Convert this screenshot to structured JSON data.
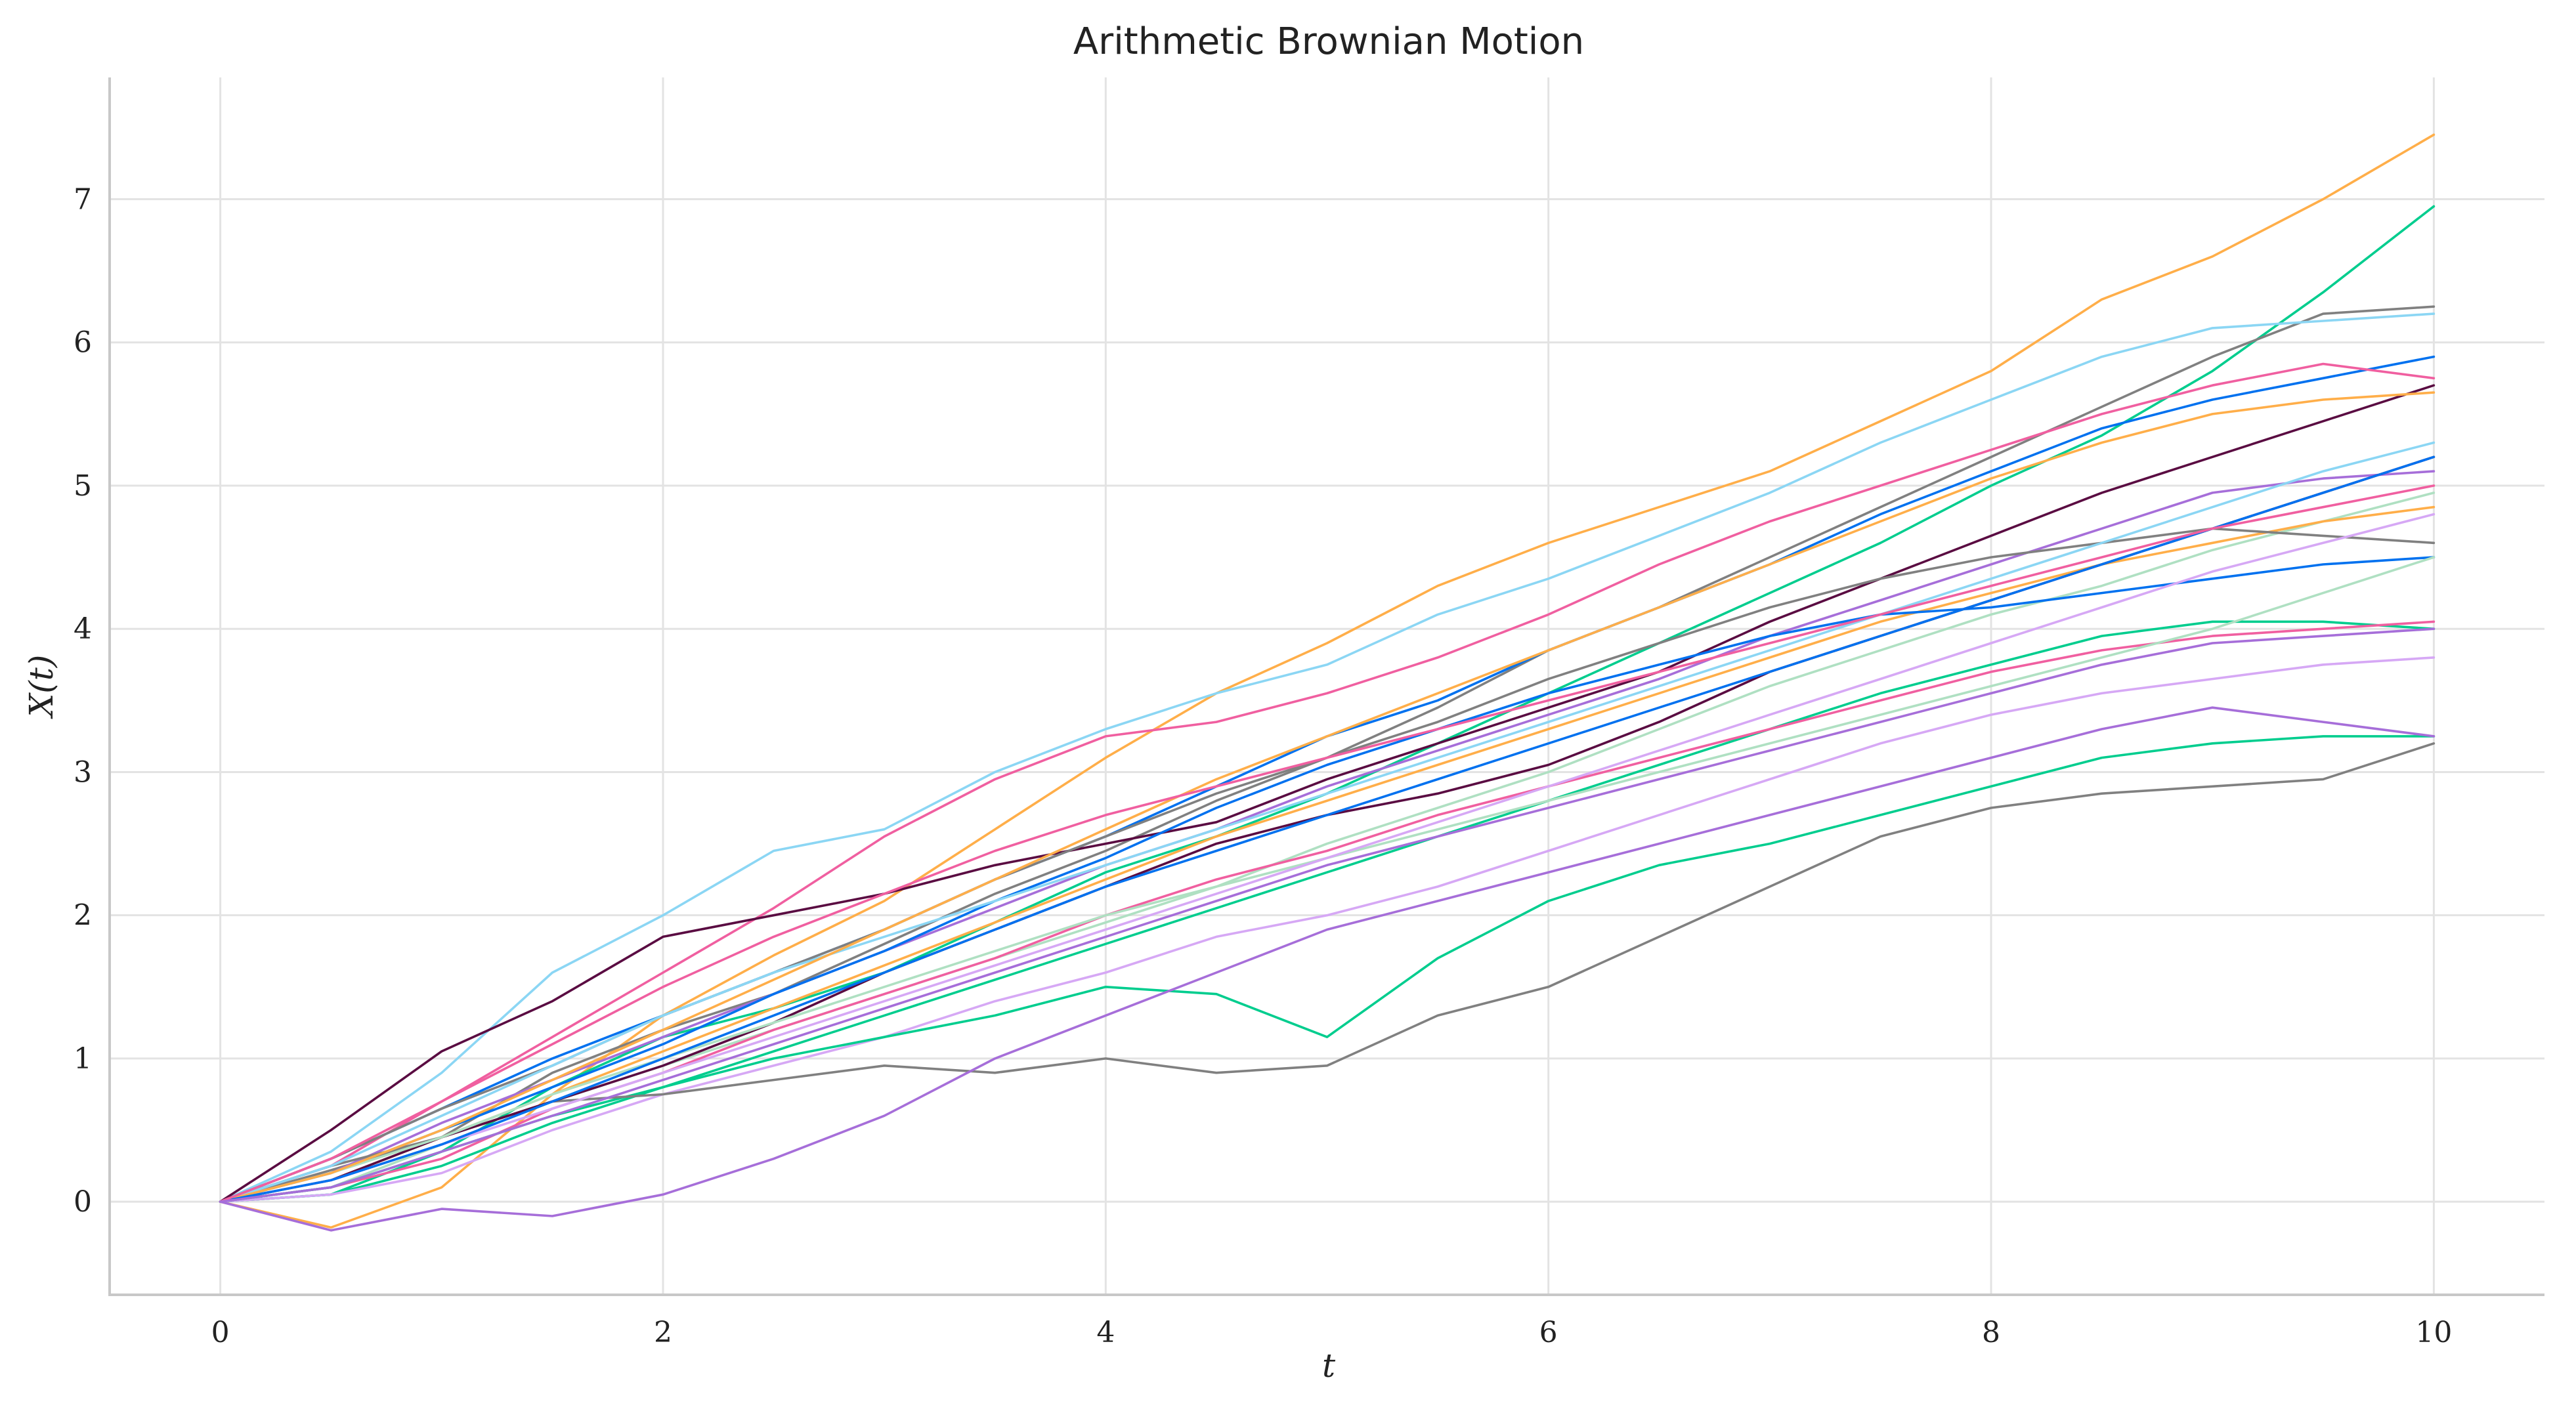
{
  "chart_data": {
    "type": "line",
    "title": "Arithmetic Brownian Motion",
    "xlabel": "t",
    "ylabel": "X(t)",
    "xlim": [
      -0.5,
      10.5
    ],
    "ylim": [
      -0.65,
      7.85
    ],
    "x_ticks": [
      0,
      2,
      4,
      6,
      8,
      10
    ],
    "x_tick_labels": [
      "0",
      "2",
      "4",
      "6",
      "8",
      "10"
    ],
    "y_ticks": [
      0,
      1,
      2,
      3,
      4,
      5,
      6,
      7
    ],
    "y_tick_labels": [
      "0",
      "1",
      "2",
      "3",
      "4",
      "5",
      "6",
      "7"
    ],
    "grid": true,
    "legend": "none",
    "x": [
      0,
      0.5,
      1,
      1.5,
      2,
      2.5,
      3,
      3.5,
      4,
      4.5,
      5,
      5.5,
      6,
      6.5,
      7,
      7.5,
      8,
      8.5,
      9,
      9.5,
      10
    ],
    "series": [
      {
        "color": "#ffae49",
        "values": [
          0,
          -0.18,
          0.1,
          0.75,
          1.3,
          1.72,
          2.1,
          2.6,
          3.1,
          3.55,
          3.9,
          4.3,
          4.6,
          4.85,
          5.1,
          5.45,
          5.8,
          6.3,
          6.6,
          7.0,
          7.45
        ]
      },
      {
        "color": "#00cd8e",
        "values": [
          0,
          0.05,
          0.35,
          0.8,
          1.15,
          1.35,
          1.6,
          1.95,
          2.3,
          2.55,
          2.85,
          3.2,
          3.55,
          3.9,
          4.25,
          4.6,
          5.0,
          5.35,
          5.8,
          6.35,
          6.95
        ]
      },
      {
        "color": "#808080",
        "values": [
          0,
          0.22,
          0.45,
          0.9,
          1.2,
          1.45,
          1.8,
          2.15,
          2.45,
          2.8,
          3.1,
          3.45,
          3.85,
          4.15,
          4.5,
          4.85,
          5.2,
          5.55,
          5.9,
          6.2,
          6.25
        ]
      },
      {
        "color": "#8bd6f4",
        "values": [
          0,
          0.35,
          0.9,
          1.6,
          2.0,
          2.45,
          2.6,
          3.0,
          3.3,
          3.55,
          3.75,
          4.1,
          4.35,
          4.65,
          4.95,
          5.3,
          5.6,
          5.9,
          6.1,
          6.15,
          6.2
        ]
      },
      {
        "color": "#0071ef",
        "values": [
          0,
          0.3,
          0.65,
          1.0,
          1.3,
          1.6,
          1.9,
          2.25,
          2.55,
          2.9,
          3.25,
          3.5,
          3.85,
          4.15,
          4.45,
          4.8,
          5.1,
          5.4,
          5.6,
          5.75,
          5.9
        ]
      },
      {
        "color": "#f05fa0",
        "values": [
          0,
          0.25,
          0.7,
          1.15,
          1.6,
          2.05,
          2.55,
          2.95,
          3.25,
          3.35,
          3.55,
          3.8,
          4.1,
          4.45,
          4.75,
          5.0,
          5.25,
          5.5,
          5.7,
          5.85,
          5.75
        ]
      },
      {
        "color": "#5a0c42",
        "values": [
          0,
          0.5,
          1.05,
          1.4,
          1.85,
          2.0,
          2.15,
          2.35,
          2.5,
          2.65,
          2.95,
          3.2,
          3.45,
          3.7,
          4.05,
          4.35,
          4.65,
          4.95,
          5.2,
          5.45,
          5.7
        ]
      },
      {
        "color": "#a66ed9",
        "values": [
          0,
          0.2,
          0.55,
          0.85,
          1.15,
          1.45,
          1.75,
          2.05,
          2.35,
          2.6,
          2.9,
          3.15,
          3.4,
          3.65,
          3.95,
          4.2,
          4.45,
          4.7,
          4.95,
          5.05,
          5.1
        ]
      },
      {
        "color": "#afe0c2",
        "values": [
          0,
          0.1,
          0.4,
          0.7,
          0.95,
          1.2,
          1.45,
          1.7,
          1.95,
          2.2,
          2.5,
          2.75,
          3.0,
          3.3,
          3.6,
          3.85,
          4.1,
          4.3,
          4.55,
          4.75,
          4.95
        ]
      },
      {
        "color": "#ffae49",
        "values": [
          0,
          0.15,
          0.45,
          0.75,
          1.05,
          1.35,
          1.65,
          1.95,
          2.25,
          2.55,
          2.8,
          3.05,
          3.3,
          3.55,
          3.8,
          4.05,
          4.25,
          4.45,
          4.6,
          4.75,
          4.85
        ]
      },
      {
        "color": "#00cd8e",
        "values": [
          0,
          0.05,
          0.25,
          0.55,
          0.8,
          1.05,
          1.3,
          1.55,
          1.8,
          2.05,
          2.3,
          2.55,
          2.8,
          3.05,
          3.3,
          3.55,
          3.75,
          3.95,
          4.05,
          4.05,
          4.0
        ]
      },
      {
        "color": "#808080",
        "values": [
          0,
          0.3,
          0.65,
          0.95,
          1.3,
          1.6,
          1.9,
          2.25,
          2.55,
          2.85,
          3.1,
          3.35,
          3.65,
          3.9,
          4.15,
          4.35,
          4.5,
          4.6,
          4.7,
          4.65,
          4.6
        ]
      },
      {
        "color": "#0071ef",
        "values": [
          0,
          0.2,
          0.5,
          0.8,
          1.1,
          1.45,
          1.75,
          2.1,
          2.4,
          2.75,
          3.05,
          3.3,
          3.55,
          3.75,
          3.95,
          4.1,
          4.15,
          4.25,
          4.35,
          4.45,
          4.5
        ]
      },
      {
        "color": "#f05fa0",
        "values": [
          0,
          0.1,
          0.3,
          0.65,
          0.9,
          1.2,
          1.45,
          1.7,
          2.0,
          2.25,
          2.45,
          2.7,
          2.9,
          3.1,
          3.3,
          3.5,
          3.7,
          3.85,
          3.95,
          4.0,
          4.05
        ]
      },
      {
        "color": "#d6a8f5",
        "values": [
          0,
          0.05,
          0.2,
          0.5,
          0.75,
          0.95,
          1.15,
          1.4,
          1.6,
          1.85,
          2.0,
          2.2,
          2.45,
          2.7,
          2.95,
          3.2,
          3.4,
          3.55,
          3.65,
          3.75,
          3.8
        ]
      },
      {
        "color": "#00cd8e",
        "values": [
          0,
          0.1,
          0.35,
          0.6,
          0.8,
          1.0,
          1.15,
          1.3,
          1.5,
          1.45,
          1.15,
          1.7,
          2.1,
          2.35,
          2.5,
          2.7,
          2.9,
          3.1,
          3.2,
          3.25,
          3.25
        ]
      },
      {
        "color": "#808080",
        "values": [
          0,
          0.25,
          0.45,
          0.7,
          0.75,
          0.85,
          0.95,
          0.9,
          1.0,
          0.9,
          0.95,
          1.3,
          1.5,
          1.85,
          2.2,
          2.55,
          2.75,
          2.85,
          2.9,
          2.95,
          3.2
        ]
      },
      {
        "color": "#a66ed9",
        "values": [
          0,
          -0.2,
          -0.05,
          -0.1,
          0.05,
          0.3,
          0.6,
          1.0,
          1.3,
          1.6,
          1.9,
          2.1,
          2.3,
          2.5,
          2.7,
          2.9,
          3.1,
          3.3,
          3.45,
          3.35,
          3.25
        ]
      },
      {
        "color": "#8bd6f4",
        "values": [
          0,
          0.25,
          0.6,
          0.95,
          1.3,
          1.6,
          1.85,
          2.1,
          2.35,
          2.6,
          2.85,
          3.1,
          3.35,
          3.6,
          3.85,
          4.1,
          4.35,
          4.6,
          4.85,
          5.1,
          5.3
        ]
      },
      {
        "color": "#5a0c42",
        "values": [
          0,
          0.15,
          0.45,
          0.7,
          0.95,
          1.25,
          1.6,
          1.9,
          2.2,
          2.5,
          2.7,
          2.85,
          3.05,
          3.35,
          3.7,
          3.95,
          4.2,
          4.45,
          4.7,
          4.95,
          5.2
        ]
      },
      {
        "color": "#afe0c2",
        "values": [
          0,
          0.2,
          0.45,
          0.75,
          1.0,
          1.25,
          1.5,
          1.75,
          2.0,
          2.2,
          2.4,
          2.6,
          2.8,
          3.0,
          3.2,
          3.4,
          3.6,
          3.8,
          4.0,
          4.25,
          4.5
        ]
      },
      {
        "color": "#d6a8f5",
        "values": [
          0,
          0.15,
          0.4,
          0.65,
          0.9,
          1.15,
          1.4,
          1.65,
          1.9,
          2.15,
          2.4,
          2.65,
          2.9,
          3.15,
          3.4,
          3.65,
          3.9,
          4.15,
          4.4,
          4.6,
          4.8
        ]
      },
      {
        "color": "#ffae49",
        "values": [
          0,
          0.2,
          0.5,
          0.85,
          1.2,
          1.55,
          1.9,
          2.25,
          2.6,
          2.95,
          3.25,
          3.55,
          3.85,
          4.15,
          4.45,
          4.75,
          5.05,
          5.3,
          5.5,
          5.6,
          5.65
        ]
      },
      {
        "color": "#0071ef",
        "values": [
          0,
          0.15,
          0.4,
          0.7,
          1.0,
          1.3,
          1.6,
          1.9,
          2.2,
          2.45,
          2.7,
          2.95,
          3.2,
          3.45,
          3.7,
          3.95,
          4.2,
          4.45,
          4.7,
          4.95,
          5.2
        ]
      },
      {
        "color": "#f05fa0",
        "values": [
          0,
          0.3,
          0.7,
          1.1,
          1.5,
          1.85,
          2.15,
          2.45,
          2.7,
          2.9,
          3.1,
          3.3,
          3.5,
          3.7,
          3.9,
          4.1,
          4.3,
          4.5,
          4.7,
          4.85,
          5.0
        ]
      },
      {
        "color": "#a66ed9",
        "values": [
          0,
          0.1,
          0.35,
          0.6,
          0.85,
          1.1,
          1.35,
          1.6,
          1.85,
          2.1,
          2.35,
          2.55,
          2.75,
          2.95,
          3.15,
          3.35,
          3.55,
          3.75,
          3.9,
          3.95,
          4.0
        ]
      }
    ]
  }
}
